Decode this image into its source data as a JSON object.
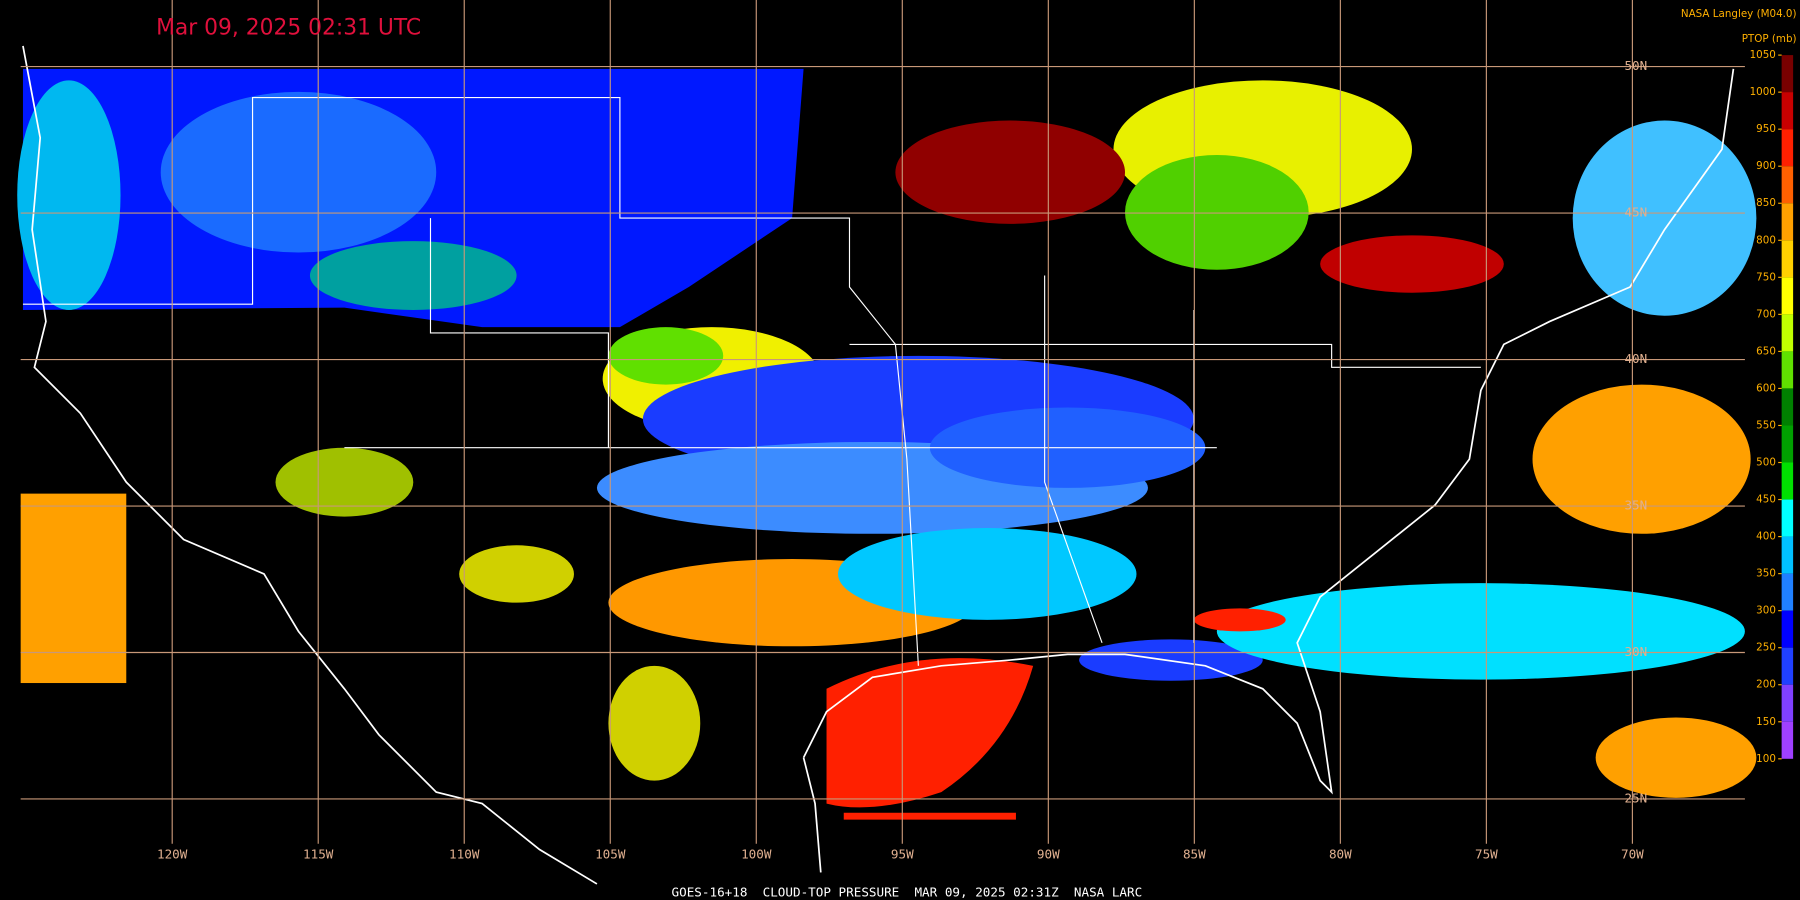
{
  "header": {
    "timestamp": "Mar 09, 2025 02:31 UTC",
    "credit": "NASA Langley (M04.0)"
  },
  "colorbar": {
    "title": "PTOP (mb)",
    "ticks": [
      1050,
      1000,
      950,
      900,
      850,
      800,
      750,
      700,
      650,
      600,
      550,
      500,
      450,
      400,
      350,
      300,
      250,
      200,
      150,
      100
    ],
    "colors": [
      "#780000",
      "#c80000",
      "#ff2000",
      "#ff6000",
      "#ffa000",
      "#ffd000",
      "#ffff00",
      "#c0ff00",
      "#60e000",
      "#008000",
      "#00a000",
      "#00e000",
      "#00ffff",
      "#00c0ff",
      "#2080ff",
      "#0000ff",
      "#2040ff",
      "#8040ff",
      "#a040ff"
    ]
  },
  "graticule": {
    "latitudes": [
      "50N",
      "45N",
      "40N",
      "35N",
      "30N",
      "25N"
    ],
    "longitudes": [
      "120W",
      "115W",
      "110W",
      "105W",
      "100W",
      "95W",
      "90W",
      "85W",
      "80W",
      "75W",
      "70W"
    ]
  },
  "footer": "GOES-16+18  CLOUD-TOP PRESSURE  MAR 09, 2025 02:31Z  NASA LARC"
}
